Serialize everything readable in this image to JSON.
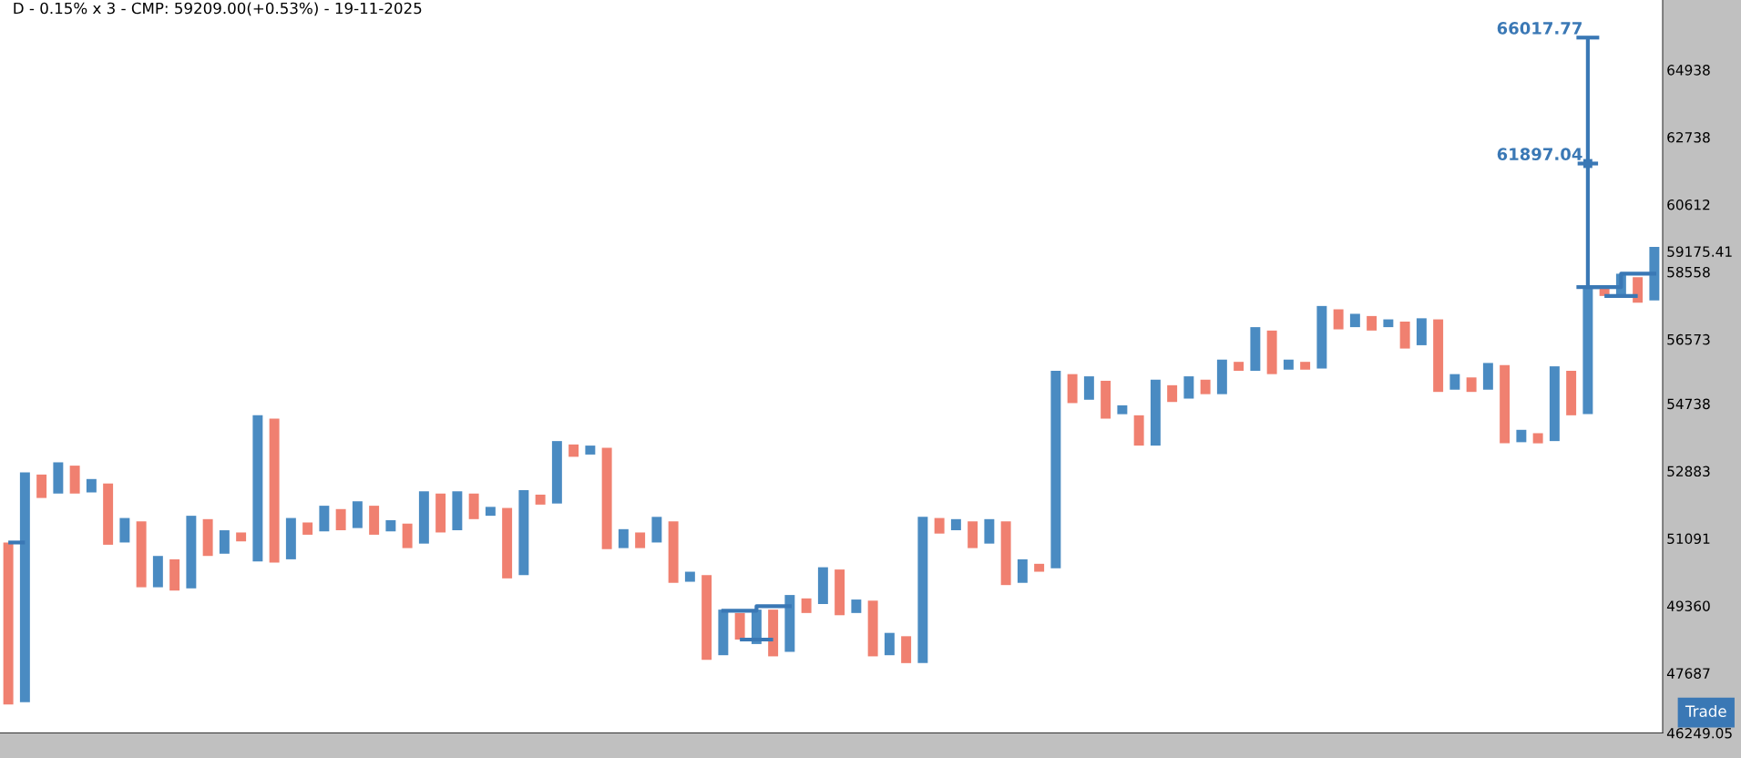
{
  "chart_data": {
    "type": "bar",
    "title": "D - 0.15% x 3 - CMP: 59209.00(+0.53%) - 19-11-2025",
    "categories": [
      null,
      null,
      null,
      null,
      null,
      null,
      null,
      null,
      null,
      null,
      null,
      null,
      null,
      null,
      null,
      null,
      null,
      null,
      null,
      null,
      null,
      null,
      null,
      null,
      null,
      null,
      null,
      null,
      null,
      null,
      null,
      null,
      null,
      null,
      null,
      null,
      null,
      null,
      null,
      null,
      null,
      null,
      null,
      null,
      null,
      null,
      null,
      null,
      null,
      null,
      null,
      null,
      null,
      null,
      null,
      null,
      null,
      null,
      null,
      null,
      null,
      null,
      null,
      null,
      null,
      null,
      null,
      null,
      null,
      null,
      null,
      null,
      null,
      null,
      null,
      null,
      null,
      null,
      null,
      null,
      null,
      null,
      null,
      null,
      null,
      null,
      null,
      null,
      null,
      null,
      null,
      null,
      null,
      null,
      null,
      null,
      null,
      null,
      null,
      null
    ],
    "base": [
      46930,
      46984,
      52160,
      52278,
      52278,
      52308,
      50926,
      50985,
      49830,
      49830,
      49746,
      49802,
      50635,
      50693,
      51014,
      50490,
      50461,
      50548,
      51188,
      51276,
      51305,
      51363,
      51188,
      51276,
      50839,
      50956,
      51247,
      51305,
      51598,
      51687,
      50057,
      50143,
      51983,
      52012,
      53271,
      53332,
      50810,
      50839,
      50839,
      50985,
      49943,
      49971,
      48016,
      48127,
      48514,
      48403,
      48099,
      48210,
      49178,
      49404,
      49122,
      49178,
      48099,
      48127,
      47933,
      47933,
      51218,
      51305,
      50839,
      50956,
      49886,
      49943,
      50228,
      50314,
      54755,
      54849,
      54321,
      54445,
      53577,
      53577,
      54786,
      54881,
      55006,
      55006,
      55668,
      55668,
      55573,
      55700,
      55700,
      55732,
      56860,
      56925,
      56826,
      56925,
      56305,
      56401,
      55069,
      55132,
      55069,
      55132,
      53639,
      53670,
      53639,
      53701,
      54414,
      54445,
      57841,
      57841,
      57644,
      57709
    ],
    "values": [
      4055,
      5865,
      629,
      842,
      752,
      360,
      1622,
      643,
      1709,
      805,
      802,
      1885,
      963,
      612,
      233,
      3924,
      3860,
      1080,
      322,
      677,
      559,
      708,
      765,
      293,
      641,
      1382,
      1031,
      1033,
      680,
      236,
      1837,
      2225,
      266,
      1689,
      337,
      245,
      2705,
      495,
      408,
      673,
      1596,
      257,
      2127,
      1136,
      664,
      860,
      1164,
      1423,
      369,
      939,
      1163,
      340,
      1391,
      553,
      664,
      3725,
      410,
      293,
      700,
      642,
      1653,
      605,
      204,
      5354,
      818,
      661,
      1063,
      248,
      837,
      1838,
      472,
      629,
      409,
      981,
      255,
      1257,
      1253,
      287,
      223,
      1813,
      587,
      390,
      424,
      227,
      782,
      783,
      2083,
      441,
      410,
      759,
      2188,
      341,
      279,
      2094,
      1254,
      3659,
      230,
      662,
      758,
      1601
    ],
    "colors": [
      "#f08070",
      "#4a8bc2",
      "#f08070",
      "#4a8bc2",
      "#f08070",
      "#4a8bc2",
      "#f08070",
      "#4a8bc2",
      "#f08070",
      "#4a8bc2",
      "#f08070",
      "#4a8bc2",
      "#f08070",
      "#4a8bc2",
      "#f08070",
      "#4a8bc2",
      "#f08070",
      "#4a8bc2",
      "#f08070",
      "#4a8bc2",
      "#f08070",
      "#4a8bc2",
      "#f08070",
      "#4a8bc2",
      "#f08070",
      "#4a8bc2",
      "#f08070",
      "#4a8bc2",
      "#f08070",
      "#4a8bc2",
      "#f08070",
      "#4a8bc2",
      "#f08070",
      "#4a8bc2",
      "#f08070",
      "#4a8bc2",
      "#f08070",
      "#4a8bc2",
      "#f08070",
      "#4a8bc2",
      "#f08070",
      "#4a8bc2",
      "#f08070",
      "#4a8bc2",
      "#f08070",
      "#4a8bc2",
      "#f08070",
      "#4a8bc2",
      "#f08070",
      "#4a8bc2",
      "#f08070",
      "#4a8bc2",
      "#f08070",
      "#4a8bc2",
      "#f08070",
      "#4a8bc2",
      "#f08070",
      "#4a8bc2",
      "#f08070",
      "#4a8bc2",
      "#f08070",
      "#4a8bc2",
      "#f08070",
      "#4a8bc2",
      "#f08070",
      "#4a8bc2",
      "#f08070",
      "#4a8bc2",
      "#f08070",
      "#4a8bc2",
      "#f08070",
      "#4a8bc2",
      "#f08070",
      "#4a8bc2",
      "#f08070",
      "#4a8bc2",
      "#f08070",
      "#4a8bc2",
      "#f08070",
      "#4a8bc2",
      "#f08070",
      "#4a8bc2",
      "#f08070",
      "#4a8bc2",
      "#f08070",
      "#4a8bc2",
      "#f08070",
      "#4a8bc2",
      "#f08070",
      "#4a8bc2",
      "#f08070",
      "#4a8bc2",
      "#f08070",
      "#4a8bc2",
      "#f08070",
      "#4a8bc2",
      "#f08070",
      "#4a8bc2",
      "#f08070",
      "#4a8bc2"
    ],
    "series": [
      {
        "type": "scatter",
        "color": "#3a78b5",
        "values": [
          null,
          null,
          null,
          null,
          null,
          null,
          null,
          null,
          null,
          null,
          null,
          null,
          null,
          null,
          null,
          null,
          null,
          null,
          null,
          null,
          null,
          null,
          null,
          null,
          null,
          null,
          null,
          null,
          null,
          null,
          null,
          null,
          null,
          null,
          null,
          null,
          null,
          null,
          null,
          null,
          null,
          null,
          null,
          null,
          null,
          null,
          null,
          null,
          null,
          null,
          null,
          null,
          null,
          null,
          null,
          null,
          null,
          null,
          null,
          null,
          null,
          null,
          null,
          null,
          null,
          null,
          null,
          null,
          null,
          null,
          null,
          null,
          null,
          null,
          null,
          null,
          null,
          null,
          null,
          null,
          null,
          null,
          null,
          null,
          null,
          null,
          null,
          null,
          null,
          null,
          null,
          null,
          null,
          null,
          null,
          61897.04,
          null,
          null,
          null,
          null
        ],
        "errors": [
          null,
          null,
          null,
          null,
          null,
          null,
          null,
          null,
          null,
          null,
          null,
          null,
          null,
          null,
          null,
          null,
          null,
          null,
          null,
          null,
          null,
          null,
          null,
          null,
          null,
          null,
          null,
          null,
          null,
          null,
          null,
          null,
          null,
          null,
          null,
          null,
          null,
          null,
          null,
          null,
          null,
          null,
          null,
          null,
          null,
          null,
          null,
          null,
          null,
          null,
          null,
          null,
          null,
          null,
          null,
          null,
          null,
          null,
          null,
          null,
          null,
          null,
          null,
          null,
          null,
          null,
          null,
          null,
          null,
          null,
          null,
          null,
          null,
          null,
          null,
          null,
          null,
          null,
          null,
          null,
          null,
          null,
          null,
          null,
          null,
          null,
          null,
          null,
          null,
          null,
          null,
          null,
          null,
          null,
          null,
          [
            58104,
            66017.77
          ],
          null,
          null,
          null,
          null
        ]
      },
      {
        "type": "step",
        "color": "#3a78b5",
        "values": [
          null,
          null,
          null,
          null,
          null,
          null,
          null,
          null,
          null,
          null,
          null,
          null,
          null,
          null,
          null,
          null,
          null,
          null,
          null,
          null,
          null,
          null,
          null,
          null,
          null,
          null,
          null,
          null,
          null,
          null,
          null,
          null,
          null,
          null,
          null,
          null,
          null,
          null,
          null,
          null,
          null,
          null,
          null,
          null,
          null,
          null,
          null,
          null,
          null,
          null,
          null,
          null,
          null,
          null,
          null,
          null,
          null,
          null,
          null,
          null,
          null,
          null,
          null,
          null,
          null,
          null,
          null,
          null,
          null,
          null,
          null,
          null,
          null,
          null,
          null,
          null,
          null,
          null,
          null,
          null,
          null,
          null,
          null,
          null,
          null,
          null,
          null,
          null,
          null,
          null,
          null,
          null,
          null,
          null,
          null,
          58104,
          58104,
          58503,
          58503,
          58503
        ]
      },
      {
        "type": "line",
        "color": "#3a78b5",
        "values": [
          null,
          null,
          null,
          null,
          null,
          null,
          null,
          null,
          null,
          null,
          null,
          null,
          null,
          null,
          null,
          null,
          null,
          null,
          null,
          null,
          null,
          null,
          null,
          null,
          null,
          null,
          null,
          null,
          null,
          null,
          null,
          null,
          null,
          null,
          null,
          null,
          null,
          null,
          null,
          null,
          null,
          null,
          null,
          null,
          null,
          null,
          null,
          null,
          null,
          null,
          null,
          null,
          null,
          null,
          null,
          null,
          null,
          null,
          null,
          null,
          null,
          null,
          null,
          null,
          null,
          null,
          null,
          null,
          null,
          null,
          null,
          null,
          null,
          null,
          null,
          null,
          null,
          null,
          null,
          null,
          null,
          null,
          null,
          null,
          null,
          null,
          null,
          null,
          null,
          null,
          null,
          null,
          null,
          null,
          null,
          null,
          57841,
          57841,
          57841,
          null
        ]
      },
      {
        "type": "step",
        "color": "#3a78b5",
        "values": [
          null,
          null,
          null,
          null,
          null,
          null,
          null,
          null,
          null,
          null,
          null,
          null,
          null,
          null,
          null,
          null,
          null,
          null,
          null,
          null,
          null,
          null,
          null,
          null,
          null,
          null,
          null,
          null,
          null,
          null,
          null,
          null,
          null,
          null,
          null,
          null,
          null,
          null,
          null,
          null,
          null,
          null,
          null,
          49235,
          49235,
          49350,
          49350,
          49350,
          null,
          null,
          null,
          null,
          null,
          null,
          null,
          null,
          null,
          null,
          null,
          null,
          null,
          null,
          null,
          null,
          null,
          null,
          null,
          null,
          null,
          null,
          null,
          null,
          null,
          null,
          null,
          null,
          null,
          null,
          null,
          null,
          null,
          null,
          null,
          null,
          null,
          null,
          null,
          null,
          null,
          null,
          null,
          null,
          null,
          null,
          null,
          null,
          null,
          null,
          null,
          null
        ]
      },
      {
        "type": "line",
        "color": "#3a78b5",
        "values": [
          null,
          null,
          null,
          null,
          null,
          null,
          null,
          null,
          null,
          null,
          null,
          null,
          null,
          null,
          null,
          null,
          null,
          null,
          null,
          null,
          null,
          null,
          null,
          null,
          null,
          null,
          null,
          null,
          null,
          null,
          null,
          null,
          null,
          null,
          null,
          null,
          null,
          null,
          null,
          null,
          null,
          null,
          null,
          null,
          48514,
          48514,
          48514,
          null,
          null,
          null,
          null,
          null,
          null,
          null,
          null,
          null,
          null,
          null,
          null,
          null,
          null,
          null,
          null,
          null,
          null,
          null,
          null,
          null,
          null,
          null,
          null,
          null,
          null,
          null,
          null,
          null,
          null,
          null,
          null,
          null,
          null,
          null,
          null,
          null,
          null,
          null,
          null,
          null,
          null,
          null,
          null,
          null,
          null,
          null,
          null,
          null,
          null,
          null,
          null,
          null
        ]
      },
      {
        "type": "line",
        "color": "#3a78b5",
        "values": [
          50985,
          50985,
          null,
          null,
          null,
          null,
          null,
          null,
          null,
          null,
          null,
          null,
          null,
          null,
          null,
          null,
          null,
          null,
          null,
          null,
          null,
          null,
          null,
          null,
          null,
          null,
          null,
          null,
          null,
          null,
          null,
          null,
          null,
          null,
          null,
          null,
          null,
          null,
          null,
          null,
          null,
          null,
          null,
          null,
          null,
          null,
          null,
          null,
          null,
          null,
          null,
          null,
          null,
          null,
          null,
          null,
          null,
          null,
          null,
          null,
          null,
          null,
          null,
          null,
          null,
          null,
          null,
          null,
          null,
          null,
          null,
          null,
          null,
          null,
          null,
          null,
          null,
          null,
          null,
          null,
          null,
          null,
          null,
          null,
          null,
          null,
          null,
          null,
          null,
          null,
          null,
          null,
          null,
          null,
          null,
          null,
          null,
          null,
          null,
          null
        ]
      }
    ],
    "annotations": [
      "66017.77",
      "61897.04",
      "Trade"
    ],
    "log": true,
    "ylim": [
      46249.05,
      67300
    ],
    "yticks": [
      {
        "value": 46249.05,
        "label": "46249.05"
      },
      47687,
      49360,
      51091,
      52883,
      54738,
      56573,
      58558,
      {
        "value": 59175.41,
        "label": "59175.41"
      },
      60612,
      62738,
      64938
    ],
    "tick_labels": "y",
    "grid": false,
    "legend": false
  }
}
